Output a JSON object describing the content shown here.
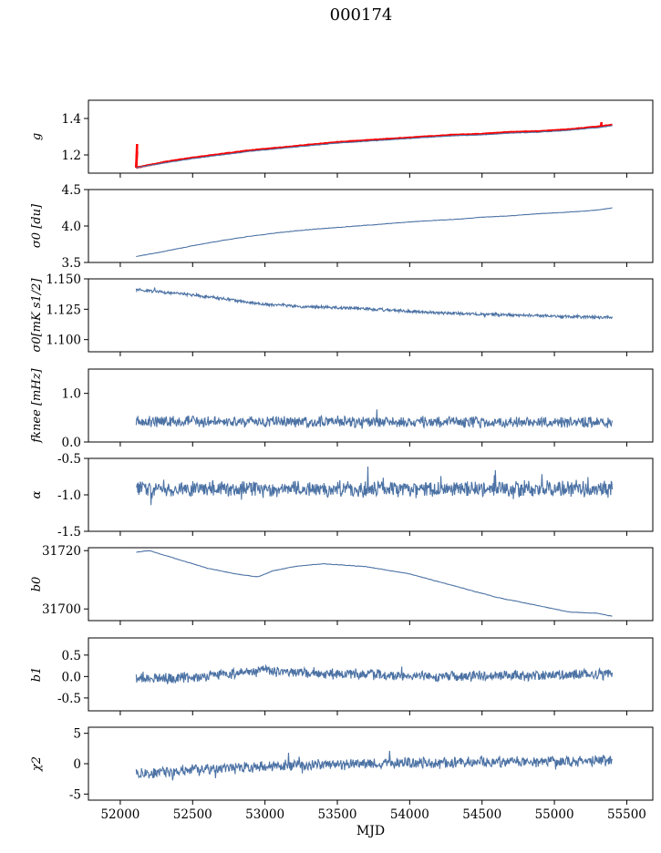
{
  "figure": {
    "title": "000174"
  },
  "chart_data": [
    {
      "type": "line",
      "ylabel": "g",
      "ylim": [
        1.1,
        1.5
      ],
      "yticks": [
        1.2,
        1.4
      ],
      "series": [
        {
          "color": "#ff0000",
          "kind": "trend",
          "pts": [
            [
              52110,
              1.13
            ],
            [
              52300,
              1.16
            ],
            [
              52500,
              1.185
            ],
            [
              52700,
              1.205
            ],
            [
              52900,
              1.225
            ],
            [
              53100,
              1.24
            ],
            [
              53300,
              1.255
            ],
            [
              53500,
              1.27
            ],
            [
              53700,
              1.28
            ],
            [
              53900,
              1.29
            ],
            [
              54100,
              1.3
            ],
            [
              54300,
              1.31
            ],
            [
              54500,
              1.315
            ],
            [
              54700,
              1.325
            ],
            [
              54900,
              1.33
            ],
            [
              55100,
              1.34
            ],
            [
              55300,
              1.355
            ],
            [
              55400,
              1.365
            ]
          ],
          "spikes": [
            [
              52110,
              1.13,
              1.26
            ],
            [
              52110,
              1.13,
              1.22
            ],
            [
              55320,
              1.35,
              1.38
            ]
          ]
        },
        {
          "color": "#4c72a4",
          "kind": "smooth",
          "pts": [
            [
              52110,
              1.13
            ],
            [
              52300,
              1.155
            ],
            [
              52500,
              1.18
            ],
            [
              52700,
              1.2
            ],
            [
              52900,
              1.22
            ],
            [
              53100,
              1.235
            ],
            [
              53300,
              1.25
            ],
            [
              53500,
              1.265
            ],
            [
              53700,
              1.275
            ],
            [
              53900,
              1.285
            ],
            [
              54100,
              1.295
            ],
            [
              54300,
              1.305
            ],
            [
              54500,
              1.31
            ],
            [
              54700,
              1.32
            ],
            [
              54900,
              1.325
            ],
            [
              55100,
              1.335
            ],
            [
              55300,
              1.35
            ],
            [
              55400,
              1.36
            ]
          ]
        }
      ]
    },
    {
      "type": "line",
      "ylabel": "σ0 [du]",
      "ylim": [
        3.5,
        4.5
      ],
      "yticks": [
        3.5,
        4.0,
        4.5
      ],
      "series": [
        {
          "color": "#4c72a4",
          "kind": "smooth",
          "pts": [
            [
              52110,
              3.58
            ],
            [
              52300,
              3.65
            ],
            [
              52500,
              3.73
            ],
            [
              52700,
              3.8
            ],
            [
              52900,
              3.86
            ],
            [
              53100,
              3.91
            ],
            [
              53300,
              3.95
            ],
            [
              53500,
              3.98
            ],
            [
              53700,
              4.01
            ],
            [
              53900,
              4.04
            ],
            [
              54100,
              4.07
            ],
            [
              54300,
              4.09
            ],
            [
              54500,
              4.12
            ],
            [
              54700,
              4.14
            ],
            [
              54900,
              4.17
            ],
            [
              55100,
              4.19
            ],
            [
              55300,
              4.22
            ],
            [
              55400,
              4.25
            ]
          ]
        }
      ]
    },
    {
      "type": "line",
      "ylabel": "σ0[mK s1/2]",
      "ylim": [
        1.09,
        1.15
      ],
      "yticks": [
        1.1,
        1.125,
        1.15
      ],
      "yfmt": 3,
      "series": [
        {
          "color": "#4c72a4",
          "kind": "noisy",
          "amp": 0.0012,
          "pts": [
            [
              52110,
              1.141
            ],
            [
              52400,
              1.138
            ],
            [
              52700,
              1.134
            ],
            [
              53000,
              1.129
            ],
            [
              53300,
              1.127
            ],
            [
              53600,
              1.126
            ],
            [
              53900,
              1.124
            ],
            [
              54200,
              1.122
            ],
            [
              54500,
              1.121
            ],
            [
              54800,
              1.12
            ],
            [
              55100,
              1.119
            ],
            [
              55400,
              1.118
            ]
          ]
        }
      ]
    },
    {
      "type": "line",
      "ylabel": "fknee [mHz]",
      "ylim": [
        0,
        1.5
      ],
      "yticks": [
        0,
        1
      ],
      "series": [
        {
          "color": "#4c72a4",
          "kind": "noisy",
          "amp": 0.11,
          "pts": [
            [
              52110,
              0.42
            ],
            [
              55400,
              0.4
            ]
          ]
        }
      ]
    },
    {
      "type": "line",
      "ylabel": "α",
      "ylim": [
        -1.5,
        -0.5
      ],
      "yticks": [
        -1.5,
        -1.0,
        -0.5
      ],
      "series": [
        {
          "color": "#4c72a4",
          "kind": "noisy",
          "amp": 0.11,
          "pts": [
            [
              52110,
              -0.92
            ],
            [
              55400,
              -0.92
            ]
          ]
        }
      ]
    },
    {
      "type": "line",
      "ylabel": "b0",
      "ylim": [
        31696,
        31721
      ],
      "yticks": [
        31700,
        31720
      ],
      "series": [
        {
          "color": "#4c72a4",
          "kind": "smooth",
          "pts": [
            [
              52110,
              31719.5
            ],
            [
              52200,
              31720
            ],
            [
              52400,
              31717
            ],
            [
              52600,
              31714
            ],
            [
              52800,
              31712
            ],
            [
              52950,
              31711
            ],
            [
              53050,
              31713
            ],
            [
              53200,
              31714.5
            ],
            [
              53400,
              31715.5
            ],
            [
              53700,
              31714.5
            ],
            [
              54000,
              31712
            ],
            [
              54300,
              31708
            ],
            [
              54600,
              31704
            ],
            [
              54900,
              31701
            ],
            [
              55100,
              31699
            ],
            [
              55300,
              31698.5
            ],
            [
              55400,
              31697.5
            ]
          ]
        }
      ]
    },
    {
      "type": "line",
      "ylabel": "b1",
      "ylim": [
        -0.8,
        0.9
      ],
      "yticks": [
        -0.5,
        0.0,
        0.5
      ],
      "series": [
        {
          "color": "#4c72a4",
          "kind": "noisy",
          "amp": 0.12,
          "pts": [
            [
              52110,
              0.0
            ],
            [
              52300,
              -0.05
            ],
            [
              52600,
              0.0
            ],
            [
              53000,
              0.15
            ],
            [
              53300,
              0.08
            ],
            [
              53700,
              0.05
            ],
            [
              54100,
              0.0
            ],
            [
              54500,
              0.02
            ],
            [
              54900,
              0.02
            ],
            [
              55400,
              0.05
            ]
          ]
        }
      ]
    },
    {
      "type": "line",
      "ylabel": "χ2",
      "ylim": [
        -6,
        6
      ],
      "yticks": [
        -5,
        0,
        5
      ],
      "series": [
        {
          "color": "#4c72a4",
          "kind": "noisy",
          "amp": 0.9,
          "pts": [
            [
              52110,
              -1.7
            ],
            [
              52500,
              -1.0
            ],
            [
              53000,
              -0.5
            ],
            [
              53500,
              -0.1
            ],
            [
              54000,
              0.1
            ],
            [
              54500,
              0.3
            ],
            [
              55000,
              0.4
            ],
            [
              55400,
              0.5
            ]
          ]
        }
      ]
    }
  ],
  "xaxis": {
    "label": "MJD",
    "lim": [
      51780,
      55680
    ],
    "ticks": [
      52000,
      52500,
      53000,
      53500,
      54000,
      54500,
      55000,
      55500
    ]
  }
}
